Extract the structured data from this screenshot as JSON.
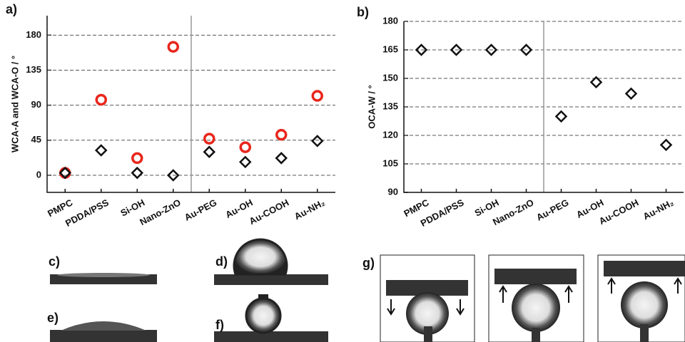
{
  "chart_data": [
    {
      "type": "scatter",
      "label": "a)",
      "y_label": "WCA-A  and WCA-O / °",
      "categories": [
        "PMPC",
        "PDDA/PSS",
        "Si-OH",
        "Nano-ZnO",
        "Au-PEG",
        "Au-OH",
        "Au-COOH",
        "Au-NH₂"
      ],
      "series": [
        {
          "color": "#e8261c",
          "marker": "circle",
          "values": [
            3,
            97,
            22,
            165,
            47,
            36,
            52,
            102
          ]
        },
        {
          "color": "#111111",
          "marker": "diamond",
          "values": [
            3,
            32,
            3,
            0,
            30,
            17,
            22,
            44
          ]
        }
      ],
      "ylim": [
        -22,
        205
      ],
      "yticks": [
        0,
        45,
        90,
        135,
        180
      ],
      "grid": true
    },
    {
      "type": "scatter",
      "label": "b)",
      "y_label": "OCA-W / °",
      "categories": [
        "PMPC",
        "PDDA/PSS",
        "Si-OH",
        "Nano-ZnO",
        "Au-PEG",
        "Au-OH",
        "Au-COOH",
        "Au-NH₂"
      ],
      "series": [
        {
          "color": "#111111",
          "marker": "diamond",
          "values": [
            165,
            165,
            165,
            165,
            130,
            148,
            142,
            115
          ]
        }
      ],
      "ylim": [
        90,
        180
      ],
      "yticks": [
        90,
        105,
        120,
        135,
        150,
        165,
        180
      ],
      "grid": true
    }
  ],
  "photo_labels": [
    "c)",
    "d)",
    "e)",
    "f)",
    "g)"
  ]
}
